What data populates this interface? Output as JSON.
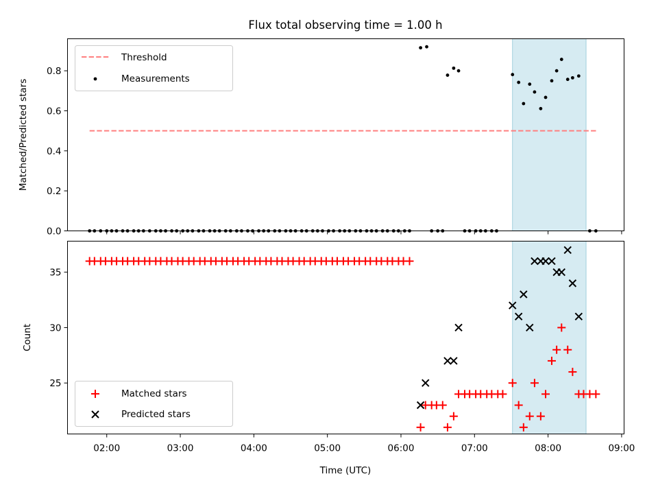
{
  "chart_data": {
    "type": "scatter",
    "title": "Flux total observing time = 1.00 h",
    "shared_x": {
      "label": "Time (UTC)",
      "range": [
        "01:28",
        "09:02"
      ],
      "ticks": [
        "02:00",
        "03:00",
        "04:00",
        "05:00",
        "06:00",
        "07:00",
        "08:00",
        "09:00"
      ]
    },
    "shaded_interval": {
      "start": "07:31",
      "end": "08:31",
      "color": "#add8e6"
    },
    "panels": [
      {
        "ylabel": "Matched/Predicted stars",
        "ylim": [
          0,
          0.96
        ],
        "yticks": [
          "0.0",
          "0.2",
          "0.4",
          "0.6",
          "0.8"
        ],
        "legend_position": "top-left",
        "threshold": {
          "name": "Threshold",
          "value": 0.5,
          "x_start": "01:46",
          "x_end": "08:40",
          "color": "#ff7f7f"
        },
        "measurements": {
          "name": "Measurements",
          "color": "#000000",
          "points": [
            [
              "01:46",
              0
            ],
            [
              "01:50",
              0
            ],
            [
              "01:55",
              0
            ],
            [
              "02:00",
              0
            ],
            [
              "02:04",
              0
            ],
            [
              "02:08",
              0
            ],
            [
              "02:13",
              0
            ],
            [
              "02:17",
              0
            ],
            [
              "02:22",
              0
            ],
            [
              "02:26",
              0
            ],
            [
              "02:30",
              0
            ],
            [
              "02:35",
              0
            ],
            [
              "02:40",
              0
            ],
            [
              "02:44",
              0
            ],
            [
              "02:48",
              0
            ],
            [
              "02:53",
              0
            ],
            [
              "02:57",
              0
            ],
            [
              "03:02",
              0
            ],
            [
              "03:06",
              0
            ],
            [
              "03:10",
              0
            ],
            [
              "03:15",
              0
            ],
            [
              "03:19",
              0
            ],
            [
              "03:24",
              0
            ],
            [
              "03:28",
              0
            ],
            [
              "03:32",
              0
            ],
            [
              "03:37",
              0
            ],
            [
              "03:41",
              0
            ],
            [
              "03:46",
              0
            ],
            [
              "03:50",
              0
            ],
            [
              "03:55",
              0
            ],
            [
              "03:59",
              0
            ],
            [
              "04:04",
              0
            ],
            [
              "04:08",
              0
            ],
            [
              "04:12",
              0
            ],
            [
              "04:17",
              0
            ],
            [
              "04:21",
              0
            ],
            [
              "04:26",
              0
            ],
            [
              "04:30",
              0
            ],
            [
              "04:34",
              0
            ],
            [
              "04:39",
              0
            ],
            [
              "04:43",
              0
            ],
            [
              "04:48",
              0
            ],
            [
              "04:52",
              0
            ],
            [
              "04:56",
              0
            ],
            [
              "05:01",
              0
            ],
            [
              "05:05",
              0
            ],
            [
              "05:10",
              0
            ],
            [
              "05:14",
              0
            ],
            [
              "05:18",
              0
            ],
            [
              "05:23",
              0
            ],
            [
              "05:27",
              0
            ],
            [
              "05:32",
              0
            ],
            [
              "05:36",
              0
            ],
            [
              "05:40",
              0
            ],
            [
              "05:45",
              0
            ],
            [
              "05:49",
              0
            ],
            [
              "05:54",
              0
            ],
            [
              "05:58",
              0
            ],
            [
              "06:03",
              0
            ],
            [
              "06:07",
              0
            ],
            [
              "06:16",
              0.915
            ],
            [
              "06:21",
              0.92
            ],
            [
              "06:25",
              0
            ],
            [
              "06:30",
              0
            ],
            [
              "06:34",
              0
            ],
            [
              "06:38",
              0.778
            ],
            [
              "06:43",
              0.813
            ],
            [
              "06:47",
              0.8
            ],
            [
              "06:52",
              0
            ],
            [
              "06:56",
              0
            ],
            [
              "07:01",
              0
            ],
            [
              "07:05",
              0
            ],
            [
              "07:09",
              0
            ],
            [
              "07:14",
              0
            ],
            [
              "07:18",
              0
            ],
            [
              "07:31",
              0.781
            ],
            [
              "07:36",
              0.742
            ],
            [
              "07:40",
              0.636
            ],
            [
              "07:45",
              0.733
            ],
            [
              "07:49",
              0.694
            ],
            [
              "07:54",
              0.611
            ],
            [
              "07:58",
              0.667
            ],
            [
              "08:03",
              0.75
            ],
            [
              "08:07",
              0.8
            ],
            [
              "08:11",
              0.857
            ],
            [
              "08:16",
              0.757
            ],
            [
              "08:20",
              0.765
            ],
            [
              "08:25",
              0.774
            ],
            [
              "08:34",
              0
            ],
            [
              "08:39",
              0
            ]
          ]
        }
      },
      {
        "ylabel": "Count",
        "ylim": [
          20.4,
          37.8
        ],
        "yticks": [
          "25",
          "30",
          "35"
        ],
        "legend_position": "bottom-left",
        "matched": {
          "name": "Matched stars",
          "color": "#ff0000",
          "points": [
            [
              "01:46",
              36
            ],
            [
              "01:50",
              36
            ],
            [
              "01:55",
              36
            ],
            [
              "01:59",
              36
            ],
            [
              "02:04",
              36
            ],
            [
              "02:08",
              36
            ],
            [
              "02:13",
              36
            ],
            [
              "02:17",
              36
            ],
            [
              "02:22",
              36
            ],
            [
              "02:26",
              36
            ],
            [
              "02:31",
              36
            ],
            [
              "02:35",
              36
            ],
            [
              "02:40",
              36
            ],
            [
              "02:44",
              36
            ],
            [
              "02:49",
              36
            ],
            [
              "02:53",
              36
            ],
            [
              "02:58",
              36
            ],
            [
              "03:02",
              36
            ],
            [
              "03:07",
              36
            ],
            [
              "03:11",
              36
            ],
            [
              "03:16",
              36
            ],
            [
              "03:20",
              36
            ],
            [
              "03:25",
              36
            ],
            [
              "03:29",
              36
            ],
            [
              "03:34",
              36
            ],
            [
              "03:38",
              36
            ],
            [
              "03:43",
              36
            ],
            [
              "03:47",
              36
            ],
            [
              "03:52",
              36
            ],
            [
              "03:56",
              36
            ],
            [
              "04:01",
              36
            ],
            [
              "04:05",
              36
            ],
            [
              "04:10",
              36
            ],
            [
              "04:14",
              36
            ],
            [
              "04:19",
              36
            ],
            [
              "04:23",
              36
            ],
            [
              "04:28",
              36
            ],
            [
              "04:32",
              36
            ],
            [
              "04:37",
              36
            ],
            [
              "04:41",
              36
            ],
            [
              "04:46",
              36
            ],
            [
              "04:50",
              36
            ],
            [
              "04:55",
              36
            ],
            [
              "04:59",
              36
            ],
            [
              "05:04",
              36
            ],
            [
              "05:08",
              36
            ],
            [
              "05:13",
              36
            ],
            [
              "05:17",
              36
            ],
            [
              "05:22",
              36
            ],
            [
              "05:26",
              36
            ],
            [
              "05:31",
              36
            ],
            [
              "05:35",
              36
            ],
            [
              "05:40",
              36
            ],
            [
              "05:44",
              36
            ],
            [
              "05:49",
              36
            ],
            [
              "05:53",
              36
            ],
            [
              "05:58",
              36
            ],
            [
              "06:02",
              36
            ],
            [
              "06:07",
              36
            ],
            [
              "06:16",
              21
            ],
            [
              "06:20",
              23
            ],
            [
              "06:25",
              23
            ],
            [
              "06:29",
              23
            ],
            [
              "06:34",
              23
            ],
            [
              "06:38",
              21
            ],
            [
              "06:43",
              22
            ],
            [
              "06:47",
              24
            ],
            [
              "06:52",
              24
            ],
            [
              "06:56",
              24
            ],
            [
              "07:01",
              24
            ],
            [
              "07:05",
              24
            ],
            [
              "07:10",
              24
            ],
            [
              "07:14",
              24
            ],
            [
              "07:19",
              24
            ],
            [
              "07:23",
              24
            ],
            [
              "07:31",
              25
            ],
            [
              "07:36",
              23
            ],
            [
              "07:40",
              21
            ],
            [
              "07:45",
              22
            ],
            [
              "07:49",
              25
            ],
            [
              "07:54",
              22
            ],
            [
              "07:58",
              24
            ],
            [
              "08:03",
              27
            ],
            [
              "08:07",
              28
            ],
            [
              "08:11",
              30
            ],
            [
              "08:16",
              28
            ],
            [
              "08:20",
              26
            ],
            [
              "08:25",
              24
            ],
            [
              "08:29",
              24
            ],
            [
              "08:34",
              24
            ],
            [
              "08:39",
              24
            ]
          ]
        },
        "predicted": {
          "name": "Predicted stars",
          "color": "#000000",
          "points": [
            [
              "06:16",
              23
            ],
            [
              "06:20",
              25
            ],
            [
              "06:38",
              27
            ],
            [
              "06:43",
              27
            ],
            [
              "06:47",
              30
            ],
            [
              "07:31",
              32
            ],
            [
              "07:36",
              31
            ],
            [
              "07:40",
              33
            ],
            [
              "07:45",
              30
            ],
            [
              "07:49",
              36
            ],
            [
              "07:54",
              36
            ],
            [
              "07:58",
              36
            ],
            [
              "08:03",
              36
            ],
            [
              "08:07",
              35
            ],
            [
              "08:11",
              35
            ],
            [
              "08:16",
              37
            ],
            [
              "08:20",
              34
            ],
            [
              "08:25",
              31
            ]
          ]
        }
      }
    ]
  }
}
